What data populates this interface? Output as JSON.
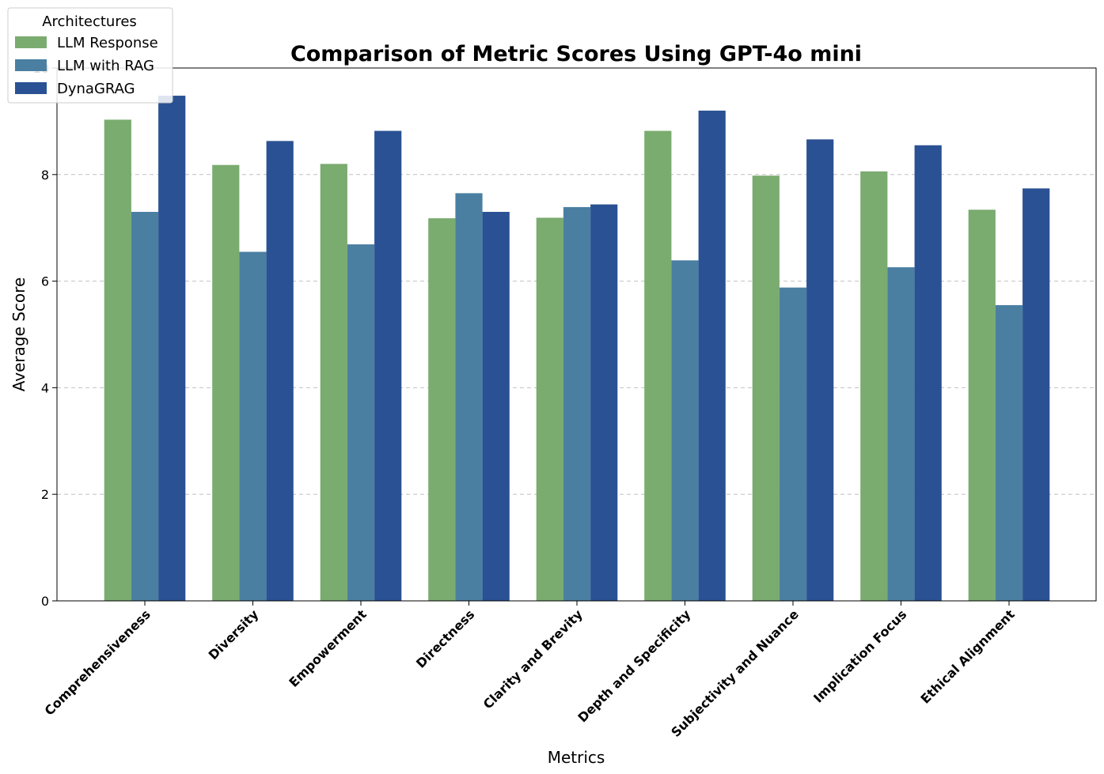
{
  "chart_data": {
    "type": "bar",
    "title": "Comparison of Metric Scores Using GPT-4o mini",
    "xlabel": "Metrics",
    "ylabel": "Average Score",
    "ylim": [
      0,
      10
    ],
    "yticks": [
      "0",
      "2",
      "4",
      "6",
      "8",
      "10"
    ],
    "grid": "y-dashed",
    "categories": [
      "Comprehensiveness",
      "Diversity",
      "Empowerment",
      "Directness",
      "Clarity and Brevity",
      "Depth and Specificity",
      "Subjectivity and Nuance",
      "Implication Focus",
      "Ethical Alignment"
    ],
    "legend": {
      "title": "Architectures",
      "placement": "top-left"
    },
    "series": [
      {
        "name": "LLM Response",
        "color": "#7aab6f",
        "values": [
          9.03,
          8.18,
          8.2,
          7.18,
          7.19,
          8.82,
          7.98,
          8.06,
          7.34
        ]
      },
      {
        "name": "LLM with RAG",
        "color": "#4a7fa2",
        "values": [
          7.3,
          6.55,
          6.69,
          7.65,
          7.39,
          6.39,
          5.88,
          6.26,
          5.55
        ]
      },
      {
        "name": "DynaGRAG",
        "color": "#2a5193",
        "values": [
          9.48,
          8.63,
          8.82,
          7.3,
          7.44,
          9.2,
          8.66,
          8.55,
          7.74
        ]
      }
    ]
  }
}
